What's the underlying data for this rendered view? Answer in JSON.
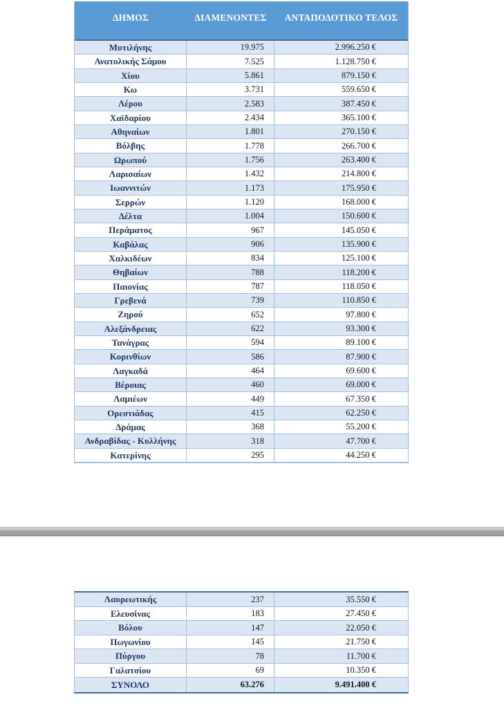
{
  "table_headers": {
    "municipality": "ΔΗΜΟΣ",
    "residents": "ΔΙΑΜΕΝΟΝΤΕΣ",
    "fee": "ΑΝΤΑΠΟΔΟΤΙΚΟ ΤΕΛΟΣ"
  },
  "chart_data": {
    "type": "table",
    "columns": [
      "ΔΗΜΟΣ",
      "ΔΙΑΜΕΝΟΝΤΕΣ",
      "ΑΝΤΑΠΟΔΟΤΙΚΟ ΤΕΛΟΣ"
    ],
    "note": "same rows as page1_rows, page2_rows and total_row"
  },
  "page1_rows": [
    {
      "municipality": "Μυτιλήνης",
      "residents": "19.975",
      "fee": "2.996.250 €"
    },
    {
      "municipality": "Ανατολικής Σάμου",
      "residents": "7.525",
      "fee": "1.128.750 €"
    },
    {
      "municipality": "Χίου",
      "residents": "5.861",
      "fee": "879.150 €"
    },
    {
      "municipality": "Κω",
      "residents": "3.731",
      "fee": "559.650 €"
    },
    {
      "municipality": "Λέρου",
      "residents": "2.583",
      "fee": "387.450 €"
    },
    {
      "municipality": "Χαϊδαρίου",
      "residents": "2.434",
      "fee": "365.100 €"
    },
    {
      "municipality": "Αθηναίων",
      "residents": "1.801",
      "fee": "270.150 €"
    },
    {
      "municipality": "Βόλβης",
      "residents": "1.778",
      "fee": "266.700 €"
    },
    {
      "municipality": "Ωρωπού",
      "residents": "1.756",
      "fee": "263.400 €"
    },
    {
      "municipality": "Λαρισαίων",
      "residents": "1.432",
      "fee": "214.800 €"
    },
    {
      "municipality": "Ιωαννιτών",
      "residents": "1.173",
      "fee": "175.950 €"
    },
    {
      "municipality": "Σερρών",
      "residents": "1.120",
      "fee": "168.000 €"
    },
    {
      "municipality": "Δέλτα",
      "residents": "1.004",
      "fee": "150.600 €"
    },
    {
      "municipality": "Περάματος",
      "residents": "967",
      "fee": "145.050 €"
    },
    {
      "municipality": "Καβάλας",
      "residents": "906",
      "fee": "135.900 €"
    },
    {
      "municipality": "Χαλκιδέων",
      "residents": "834",
      "fee": "125.100 €"
    },
    {
      "municipality": "Θηβαίων",
      "residents": "788",
      "fee": "118.200 €"
    },
    {
      "municipality": "Παιονίας",
      "residents": "787",
      "fee": "118.050 €"
    },
    {
      "municipality": "Γρεβενά",
      "residents": "739",
      "fee": "110.850 €"
    },
    {
      "municipality": "Ζηρού",
      "residents": "652",
      "fee": "97.800 €"
    },
    {
      "municipality": "Αλεξάνδρειας",
      "residents": "622",
      "fee": "93.300 €"
    },
    {
      "municipality": "Τανάγρας",
      "residents": "594",
      "fee": "89.100 €"
    },
    {
      "municipality": "Κορινθίων",
      "residents": "586",
      "fee": "87.900 €"
    },
    {
      "municipality": "Λαγκαδά",
      "residents": "464",
      "fee": "69.600 €"
    },
    {
      "municipality": "Βέροιας",
      "residents": "460",
      "fee": "69.000 €"
    },
    {
      "municipality": "Λαμιέων",
      "residents": "449",
      "fee": "67.350 €"
    },
    {
      "municipality": "Ορεστιάδας",
      "residents": "415",
      "fee": "62.250 €"
    },
    {
      "municipality": "Δράμας",
      "residents": "368",
      "fee": "55.200 €"
    },
    {
      "municipality": "Ανδραβίδας - Κυλλήνης",
      "residents": "318",
      "fee": "47.700 €"
    },
    {
      "municipality": "Κατερίνης",
      "residents": "295",
      "fee": "44.250 €"
    }
  ],
  "page2_rows": [
    {
      "municipality": "Λαυρεωτικής",
      "residents": "237",
      "fee": "35.550 €"
    },
    {
      "municipality": "Ελευσίνας",
      "residents": "183",
      "fee": "27.450 €"
    },
    {
      "municipality": "Βόλου",
      "residents": "147",
      "fee": "22.050 €"
    },
    {
      "municipality": "Πωγωνίου",
      "residents": "145",
      "fee": "21.750 €"
    },
    {
      "municipality": "Πύργου",
      "residents": "78",
      "fee": "11.700 €"
    },
    {
      "municipality": "Γαλατσίου",
      "residents": "69",
      "fee": "10.350 €"
    }
  ],
  "total_row": {
    "municipality": "ΣΥΝΟΛΟ",
    "residents": "63.276",
    "fee": "9.491.400 €"
  },
  "colors": {
    "header_bg": "#5b9bd5",
    "stripe_bg": "#dce6f2",
    "row_bg": "#ffffff",
    "grid_border": "#a3c0de",
    "strong_border": "#3c6e9f",
    "header_text": "#ffffff",
    "name_text": "#203864",
    "number_text": "#13181f"
  }
}
